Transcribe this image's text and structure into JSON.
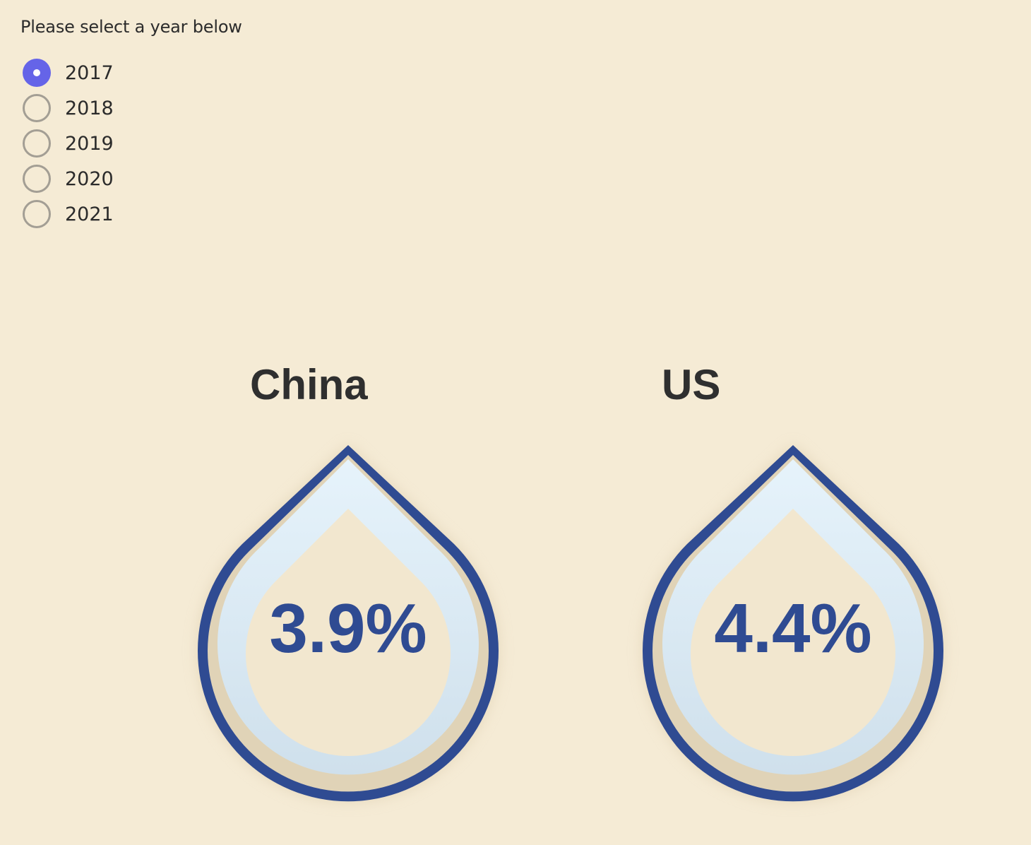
{
  "prompt": "Please select a year below",
  "years": [
    {
      "label": "2017",
      "selected": true
    },
    {
      "label": "2018",
      "selected": false
    },
    {
      "label": "2019",
      "selected": false
    },
    {
      "label": "2020",
      "selected": false
    },
    {
      "label": "2021",
      "selected": false
    }
  ],
  "drops": [
    {
      "country": "China",
      "value_label": "3.9%",
      "value": 3.9
    },
    {
      "country": "US",
      "value_label": "4.4%",
      "value": 4.4
    }
  ],
  "colors": {
    "background": "#f5ebd5",
    "accent": "#6564e8",
    "drop_outline": "#2f4b92",
    "drop_fill": "#e6f3fb",
    "water": "#3a5398"
  }
}
